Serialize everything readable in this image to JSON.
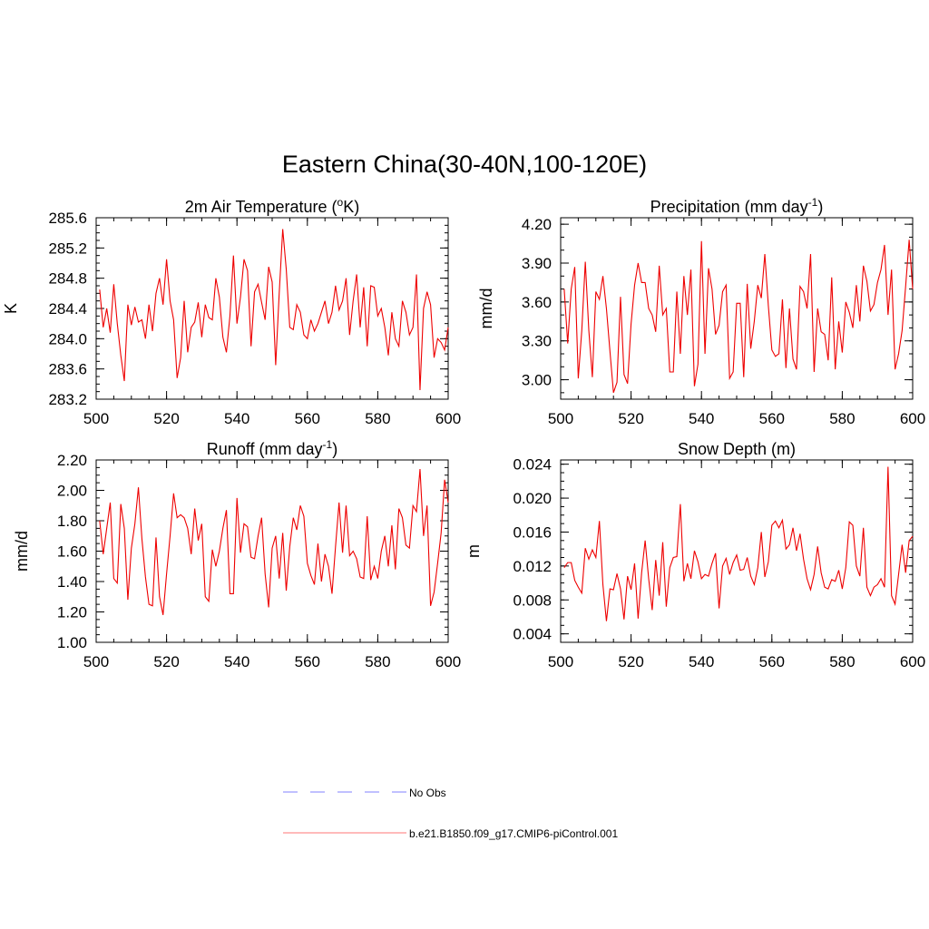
{
  "page": {
    "title": "Eastern China(30-40N,100-120E)"
  },
  "colors": {
    "series": "#ee0000",
    "obs": "#9a9aff",
    "axis": "#000000"
  },
  "legend": {
    "items": [
      {
        "label": "No Obs",
        "style": "dashed",
        "color": "#9a9aff"
      },
      {
        "label": "b.e21.B1850.f09_g17.CMIP6-piControl.001",
        "style": "solid",
        "color": "#ff9090"
      }
    ]
  },
  "chart_data": [
    {
      "type": "line",
      "title": "2m Air Temperature (",
      "title_sup": "o",
      "title_tail": "K)",
      "ylabel": "K",
      "xlim": [
        500,
        600
      ],
      "ylim": [
        283.2,
        285.6
      ],
      "yticks": [
        283.2,
        283.6,
        284.0,
        284.4,
        284.8,
        285.2,
        285.6
      ],
      "ytick_labels": [
        "283.2",
        "283.6",
        "284.0",
        "284.4",
        "284.8",
        "285.2",
        "285.6"
      ],
      "yminor": 0.1,
      "xticks": [
        500,
        520,
        540,
        560,
        580,
        600
      ],
      "xtick_labels": [
        "500",
        "520",
        "540",
        "560",
        "580",
        "600"
      ],
      "x_start": 501,
      "series": [
        {
          "name": "b.e21.B1850.f09_g17.CMIP6-piControl.001",
          "values": [
            284.65,
            284.15,
            284.4,
            284.08,
            284.72,
            284.2,
            283.78,
            283.44,
            284.45,
            284.18,
            284.42,
            284.22,
            284.25,
            284.0,
            284.45,
            284.1,
            284.6,
            284.8,
            284.45,
            285.05,
            284.5,
            284.25,
            283.48,
            283.75,
            284.5,
            283.82,
            284.15,
            284.22,
            284.48,
            284.02,
            284.45,
            284.28,
            284.25,
            284.8,
            284.55,
            284.02,
            283.82,
            284.3,
            285.1,
            284.2,
            284.55,
            285.05,
            284.9,
            283.9,
            284.62,
            284.72,
            284.48,
            284.25,
            284.95,
            284.75,
            283.65,
            284.6,
            285.45,
            284.92,
            284.15,
            284.12,
            284.45,
            284.35,
            284.05,
            284.0,
            284.25,
            284.1,
            284.2,
            284.35,
            284.5,
            284.2,
            284.35,
            284.7,
            284.38,
            284.5,
            284.8,
            284.05,
            284.5,
            284.85,
            284.15,
            284.68,
            283.9,
            284.7,
            284.68,
            284.3,
            284.4,
            284.15,
            283.78,
            284.35,
            284.0,
            283.9,
            284.5,
            284.35,
            284.05,
            284.15,
            284.85,
            283.32,
            284.4,
            284.62,
            284.45,
            283.75,
            284.0,
            283.95,
            283.85,
            284.15
          ]
        }
      ]
    },
    {
      "type": "line",
      "title": "Precipitation (mm day",
      "title_sup": "-1",
      "title_tail": ")",
      "ylabel": "mm/d",
      "xlim": [
        500,
        600
      ],
      "ylim": [
        2.85,
        4.25
      ],
      "yticks": [
        3.0,
        3.3,
        3.6,
        3.9,
        4.2
      ],
      "ytick_labels": [
        "3.00",
        "3.30",
        "3.60",
        "3.90",
        "4.20"
      ],
      "yminor": 0.1,
      "xticks": [
        500,
        520,
        540,
        560,
        580,
        600
      ],
      "xtick_labels": [
        "500",
        "520",
        "540",
        "560",
        "580",
        "600"
      ],
      "x_start": 501,
      "series": [
        {
          "name": "b.e21.B1850.f09_g17.CMIP6-piControl.001",
          "values": [
            3.7,
            3.28,
            3.7,
            3.87,
            3.01,
            3.38,
            3.91,
            3.38,
            3.02,
            3.68,
            3.62,
            3.8,
            3.55,
            3.22,
            2.9,
            2.98,
            3.64,
            3.04,
            2.97,
            3.43,
            3.73,
            3.9,
            3.75,
            3.75,
            3.55,
            3.5,
            3.37,
            3.88,
            3.5,
            3.55,
            3.06,
            3.06,
            3.68,
            3.2,
            3.8,
            3.5,
            3.85,
            2.95,
            3.12,
            4.07,
            3.2,
            3.86,
            3.7,
            3.35,
            3.42,
            3.68,
            3.73,
            3.01,
            3.06,
            3.59,
            3.59,
            3.02,
            3.74,
            3.24,
            3.45,
            3.73,
            3.63,
            3.97,
            3.57,
            3.23,
            3.18,
            3.2,
            3.62,
            3.09,
            3.55,
            3.16,
            3.08,
            3.72,
            3.68,
            3.55,
            3.97,
            3.06,
            3.55,
            3.37,
            3.35,
            3.15,
            3.79,
            3.08,
            3.45,
            3.21,
            3.6,
            3.52,
            3.4,
            3.73,
            3.45,
            3.88,
            3.76,
            3.53,
            3.58,
            3.75,
            3.85,
            4.04,
            3.5,
            3.85,
            3.08,
            3.2,
            3.38,
            3.72,
            4.08,
            3.7
          ]
        }
      ]
    },
    {
      "type": "line",
      "title": "Runoff (mm day",
      "title_sup": "-1",
      "title_tail": ")",
      "ylabel": "mm/d",
      "xlim": [
        500,
        600
      ],
      "ylim": [
        1.0,
        2.2
      ],
      "yticks": [
        1.0,
        1.2,
        1.4,
        1.6,
        1.8,
        2.0,
        2.2
      ],
      "ytick_labels": [
        "1.00",
        "1.20",
        "1.40",
        "1.60",
        "1.80",
        "2.00",
        "2.20"
      ],
      "yminor": 0.05,
      "xticks": [
        500,
        520,
        540,
        560,
        580,
        600
      ],
      "xtick_labels": [
        "500",
        "520",
        "540",
        "560",
        "580",
        "600"
      ],
      "x_start": 501,
      "series": [
        {
          "name": "b.e21.B1850.f09_g17.CMIP6-piControl.001",
          "values": [
            1.8,
            1.58,
            1.75,
            1.92,
            1.42,
            1.39,
            1.91,
            1.75,
            1.28,
            1.62,
            1.78,
            2.02,
            1.68,
            1.43,
            1.25,
            1.24,
            1.69,
            1.3,
            1.18,
            1.45,
            1.7,
            1.98,
            1.82,
            1.84,
            1.82,
            1.75,
            1.58,
            1.88,
            1.67,
            1.78,
            1.3,
            1.27,
            1.61,
            1.5,
            1.6,
            1.75,
            1.87,
            1.32,
            1.32,
            1.95,
            1.59,
            1.78,
            1.76,
            1.56,
            1.55,
            1.7,
            1.82,
            1.45,
            1.23,
            1.62,
            1.7,
            1.42,
            1.72,
            1.34,
            1.63,
            1.82,
            1.74,
            1.9,
            1.83,
            1.52,
            1.44,
            1.38,
            1.65,
            1.4,
            1.58,
            1.5,
            1.32,
            1.63,
            1.92,
            1.59,
            1.9,
            1.57,
            1.6,
            1.55,
            1.43,
            1.42,
            1.83,
            1.41,
            1.5,
            1.42,
            1.6,
            1.7,
            1.5,
            1.77,
            1.48,
            1.88,
            1.82,
            1.64,
            1.62,
            1.9,
            1.86,
            2.14,
            1.7,
            1.9,
            1.24,
            1.33,
            1.52,
            1.72,
            2.07,
            1.92
          ]
        }
      ]
    },
    {
      "type": "line",
      "title": "Snow Depth (m)",
      "title_sup": "",
      "title_tail": "",
      "ylabel": "m",
      "xlim": [
        500,
        600
      ],
      "ylim": [
        0.003,
        0.0245
      ],
      "yticks": [
        0.004,
        0.008,
        0.012,
        0.016,
        0.02,
        0.024
      ],
      "ytick_labels": [
        "0.004",
        "0.008",
        "0.012",
        "0.016",
        "0.020",
        "0.024"
      ],
      "yminor": 0.001,
      "xticks": [
        500,
        520,
        540,
        560,
        580,
        600
      ],
      "xtick_labels": [
        "500",
        "520",
        "540",
        "560",
        "580",
        "600"
      ],
      "x_start": 501,
      "series": [
        {
          "name": "b.e21.B1850.f09_g17.CMIP6-piControl.001",
          "values": [
            0.0118,
            0.0124,
            0.0124,
            0.0103,
            0.0095,
            0.0088,
            0.0141,
            0.0128,
            0.0139,
            0.013,
            0.0173,
            0.0098,
            0.0055,
            0.0093,
            0.0092,
            0.0111,
            0.0093,
            0.0057,
            0.0108,
            0.0092,
            0.0123,
            0.0058,
            0.0112,
            0.015,
            0.0105,
            0.0068,
            0.0127,
            0.0085,
            0.0148,
            0.0072,
            0.0118,
            0.013,
            0.0131,
            0.0193,
            0.0102,
            0.0123,
            0.0105,
            0.0138,
            0.0125,
            0.0105,
            0.011,
            0.0108,
            0.0123,
            0.0135,
            0.007,
            0.012,
            0.0129,
            0.011,
            0.0124,
            0.0133,
            0.0115,
            0.0116,
            0.013,
            0.0108,
            0.0098,
            0.0118,
            0.016,
            0.0107,
            0.0125,
            0.0168,
            0.0173,
            0.0165,
            0.0174,
            0.014,
            0.0145,
            0.0165,
            0.0138,
            0.0158,
            0.0128,
            0.0105,
            0.0092,
            0.011,
            0.0143,
            0.0112,
            0.0095,
            0.0093,
            0.0104,
            0.0102,
            0.0115,
            0.0093,
            0.0118,
            0.0172,
            0.0168,
            0.012,
            0.0108,
            0.0165,
            0.0095,
            0.0085,
            0.0095,
            0.0098,
            0.0105,
            0.0095,
            0.0237,
            0.0085,
            0.0075,
            0.011,
            0.0145,
            0.0112,
            0.015,
            0.0155
          ]
        }
      ]
    }
  ]
}
